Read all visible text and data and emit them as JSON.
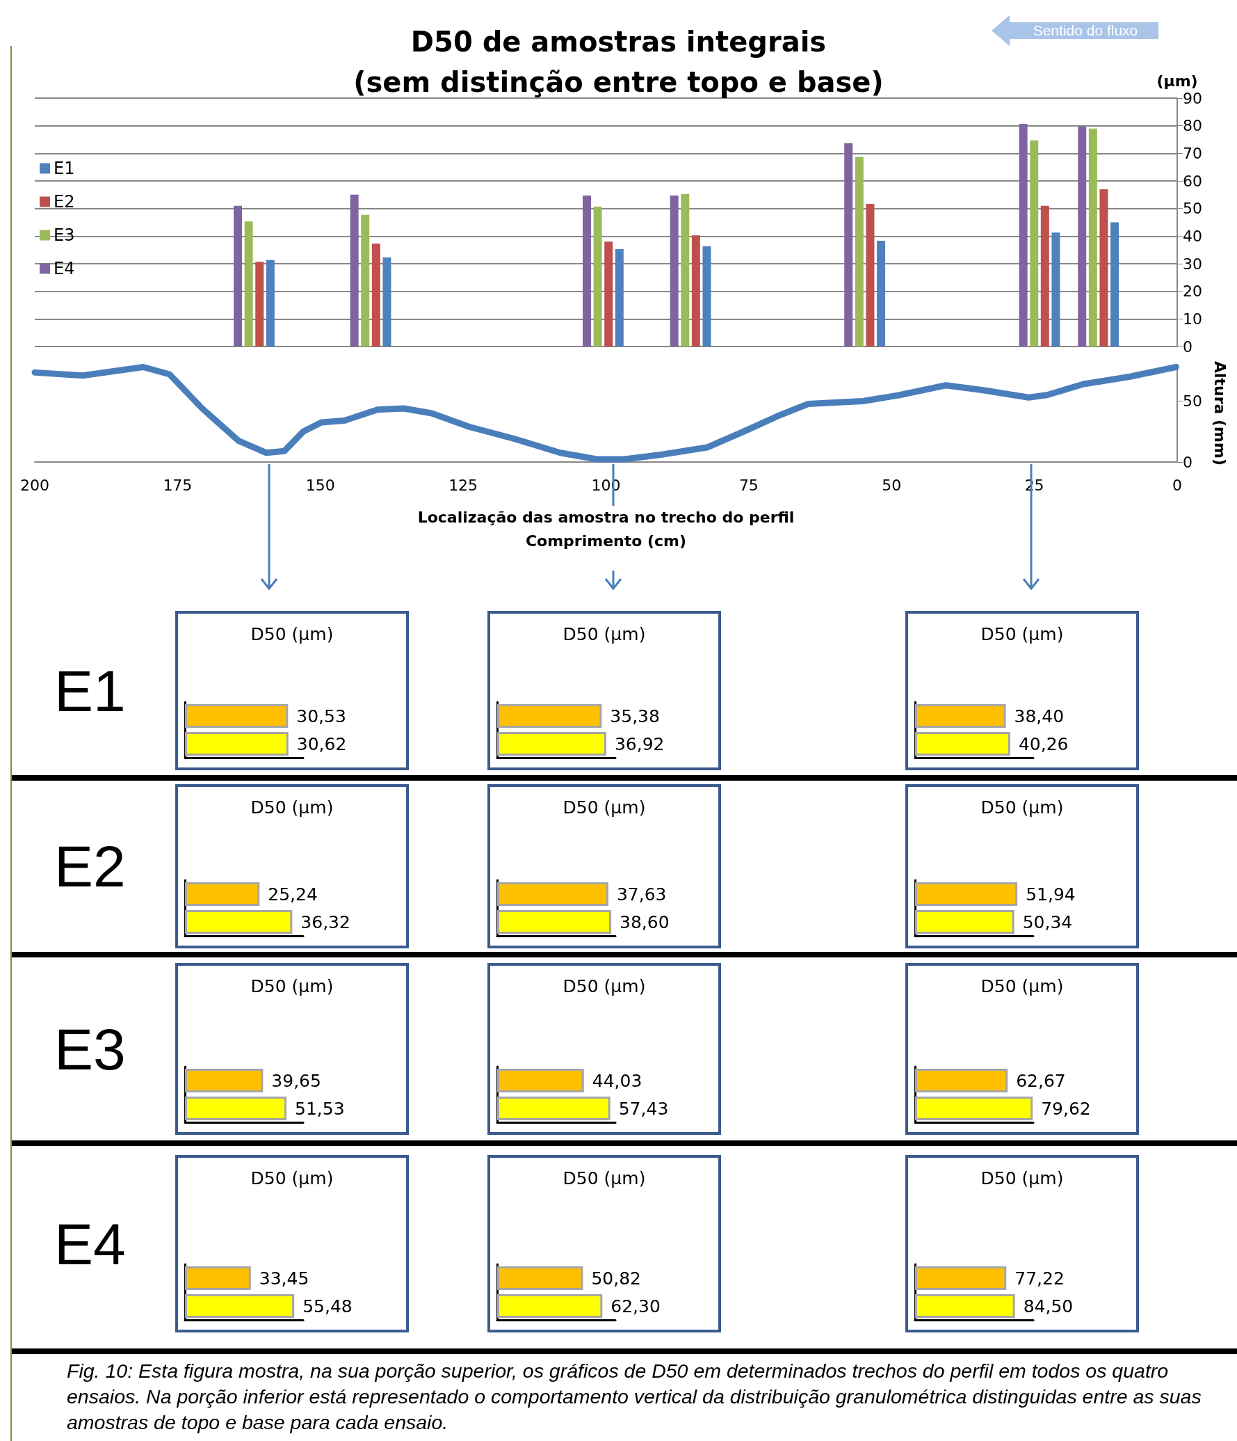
{
  "chart_data": [
    {
      "type": "bar",
      "title": "D50 de amostras integrais\n(sem distinção entre topo e base)",
      "ylabel": "(µm)",
      "x": [
        161.6,
        141.2,
        100.5,
        85.2,
        54.7,
        24.1,
        13.8
      ],
      "series": [
        {
          "name": "E1",
          "color": "#4f81bd",
          "values": [
            31.3,
            32.3,
            35.3,
            36.3,
            38.3,
            41.3,
            45
          ]
        },
        {
          "name": "E2",
          "color": "#c0504d",
          "values": [
            30.7,
            37.3,
            38,
            40.3,
            51.7,
            51,
            57
          ]
        },
        {
          "name": "E3",
          "color": "#9bbb59",
          "values": [
            45.3,
            47.7,
            50.7,
            55.3,
            68.7,
            74.7,
            79
          ]
        },
        {
          "name": "E4",
          "color": "#8064a2",
          "values": [
            51,
            55,
            54.7,
            54.7,
            73.7,
            80.7,
            79.7
          ]
        }
      ],
      "xlim": [
        200,
        0
      ],
      "ylim": [
        0,
        90
      ],
      "yticks": [
        0,
        10,
        20,
        30,
        40,
        50,
        60,
        70,
        80,
        90
      ],
      "tick_labels": "y",
      "grid": "y",
      "legend": "left",
      "annotations": [
        "Sentido do fluxo",
        "Fig. 10:  Esta figura  mostra, na sua porção superior, os gráficos de  D50 em determinados trechos do perfil  em todos os quatro ensaios. Na porção inferior está representado o comportamento vertical da distribuição granulométrica distinguidas entre as suas amostras de topo e base para cada ensaio."
      ]
    },
    {
      "type": "line",
      "xlabel": "Localização das amostra no trecho do perfil\nComprimento (cm)",
      "ylabel": "Altura (mm)",
      "x": [
        200,
        191.6,
        181,
        176.4,
        170.7,
        164.3,
        159.5,
        156.3,
        153,
        149.8,
        145.8,
        140,
        135.4,
        130.5,
        124,
        116,
        108,
        101.6,
        96.8,
        90.4,
        82.3,
        75.9,
        69.5,
        64.6,
        55,
        48.6,
        40.5,
        34,
        26,
        22.8,
        16.4,
        8.4,
        0.2
      ],
      "series": [
        {
          "color": "#4a7ebb",
          "values": [
            73.5,
            71,
            78,
            72,
            44,
            17.4,
            7.6,
            9,
            25,
            32.6,
            34,
            43,
            44,
            40,
            29,
            19,
            7.6,
            2.3,
            2.3,
            6,
            12,
            25,
            38.6,
            47.7,
            50,
            55,
            63,
            59,
            53,
            55,
            64,
            70,
            78
          ]
        }
      ],
      "xlim": [
        200,
        0
      ],
      "xticks": [
        200,
        175,
        150,
        125,
        100,
        75,
        50,
        25,
        0
      ],
      "ylim": [
        0,
        80
      ],
      "yticks": [
        0,
        50
      ],
      "marker": "none",
      "line_style": "solid",
      "grid": false
    },
    {
      "type": "bar",
      "orientation": "horizontal",
      "title": "D50 (µm)",
      "ylabel": "E1",
      "categories": [
        null,
        null
      ],
      "values": [
        30.53,
        30.62
      ],
      "value_labels": [
        "30,53",
        "30,62"
      ],
      "colors": [
        "#ffc000",
        "#ffff00"
      ],
      "tick_labels": false
    },
    {
      "type": "bar",
      "orientation": "horizontal",
      "title": "D50 (µm)",
      "categories": [
        null,
        null
      ],
      "values": [
        35.38,
        36.92
      ],
      "value_labels": [
        "35,38",
        "36,92"
      ],
      "colors": [
        "#ffc000",
        "#ffff00"
      ],
      "tick_labels": false
    },
    {
      "type": "bar",
      "orientation": "horizontal",
      "title": "D50 (µm)",
      "categories": [
        null,
        null
      ],
      "values": [
        38.4,
        40.26
      ],
      "value_labels": [
        "38,40",
        "40,26"
      ],
      "colors": [
        "#ffc000",
        "#ffff00"
      ],
      "tick_labels": false
    },
    {
      "type": "bar",
      "orientation": "horizontal",
      "title": "D50 (µm)",
      "ylabel": "E2",
      "categories": [
        null,
        null
      ],
      "values": [
        25.24,
        36.32
      ],
      "value_labels": [
        "25,24",
        "36,32"
      ],
      "colors": [
        "#ffc000",
        "#ffff00"
      ],
      "tick_labels": false
    },
    {
      "type": "bar",
      "orientation": "horizontal",
      "title": "D50 (µm)",
      "categories": [
        null,
        null
      ],
      "values": [
        37.63,
        38.6
      ],
      "value_labels": [
        "37,63",
        "38,60"
      ],
      "colors": [
        "#ffc000",
        "#ffff00"
      ],
      "tick_labels": false
    },
    {
      "type": "bar",
      "orientation": "horizontal",
      "title": "D50 (µm)",
      "categories": [
        null,
        null
      ],
      "values": [
        51.94,
        50.34
      ],
      "value_labels": [
        "51,94",
        "50,34"
      ],
      "colors": [
        "#ffc000",
        "#ffff00"
      ],
      "tick_labels": false
    },
    {
      "type": "bar",
      "orientation": "horizontal",
      "title": "D50 (µm)",
      "ylabel": "E3",
      "categories": [
        null,
        null
      ],
      "values": [
        39.65,
        51.53
      ],
      "value_labels": [
        "39,65",
        "51,53"
      ],
      "colors": [
        "#ffc000",
        "#ffff00"
      ],
      "tick_labels": false
    },
    {
      "type": "bar",
      "orientation": "horizontal",
      "title": "D50 (µm)",
      "categories": [
        null,
        null
      ],
      "values": [
        44.03,
        57.43
      ],
      "value_labels": [
        "44,03",
        "57,43"
      ],
      "colors": [
        "#ffc000",
        "#ffff00"
      ],
      "tick_labels": false
    },
    {
      "type": "bar",
      "orientation": "horizontal",
      "title": "D50 (µm)",
      "categories": [
        null,
        null
      ],
      "values": [
        62.67,
        79.62
      ],
      "value_labels": [
        "62,67",
        "79,62"
      ],
      "colors": [
        "#ffc000",
        "#ffff00"
      ],
      "tick_labels": false
    },
    {
      "type": "bar",
      "orientation": "horizontal",
      "title": "D50 (µm)",
      "ylabel": "E4",
      "categories": [
        null,
        null
      ],
      "values": [
        33.45,
        55.48
      ],
      "value_labels": [
        "33,45",
        "55,48"
      ],
      "colors": [
        "#ffc000",
        "#ffff00"
      ],
      "tick_labels": false
    },
    {
      "type": "bar",
      "orientation": "horizontal",
      "title": "D50 (µm)",
      "categories": [
        null,
        null
      ],
      "values": [
        50.82,
        62.3
      ],
      "value_labels": [
        "50,82",
        "62,30"
      ],
      "colors": [
        "#ffc000",
        "#ffff00"
      ],
      "tick_labels": false
    },
    {
      "type": "bar",
      "orientation": "horizontal",
      "title": "D50 (µm)",
      "categories": [
        null,
        null
      ],
      "values": [
        77.22,
        84.5
      ],
      "value_labels": [
        "77,22",
        "84,50"
      ],
      "colors": [
        "#ffc000",
        "#ffff00"
      ],
      "tick_labels": false
    }
  ]
}
